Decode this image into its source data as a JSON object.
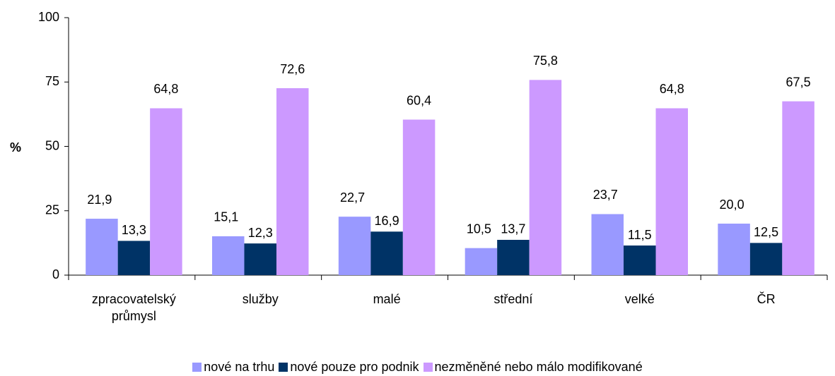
{
  "chart_data": {
    "type": "bar",
    "y_label": "%",
    "categories": [
      "zpracovatelský průmysl",
      "služby",
      "malé",
      "střední",
      "velké",
      "ČR"
    ],
    "series": [
      {
        "name": "nové na trhu",
        "color": "#9999ff",
        "values": [
          21.9,
          15.1,
          22.7,
          10.5,
          23.7,
          20.0
        ],
        "value_labels": [
          "21,9",
          "15,1",
          "22,7",
          "10,5",
          "23,7",
          "20,0"
        ]
      },
      {
        "name": "nové pouze pro podnik",
        "color": "#003366",
        "values": [
          13.3,
          12.3,
          16.9,
          13.7,
          11.5,
          12.5
        ],
        "value_labels": [
          "13,3",
          "12,3",
          "16,9",
          "13,7",
          "11,5",
          "12,5"
        ]
      },
      {
        "name": "nezměněné nebo málo modifikované",
        "color": "#cc99ff",
        "values": [
          64.8,
          72.6,
          60.4,
          75.8,
          64.8,
          67.5
        ],
        "value_labels": [
          "64,8",
          "72,6",
          "60,4",
          "75,8",
          "64,8",
          "67,5"
        ]
      }
    ],
    "ylim": [
      0,
      100
    ],
    "yticks": [
      0,
      25,
      50,
      75,
      100
    ],
    "grid": false,
    "legend": "bottom"
  }
}
